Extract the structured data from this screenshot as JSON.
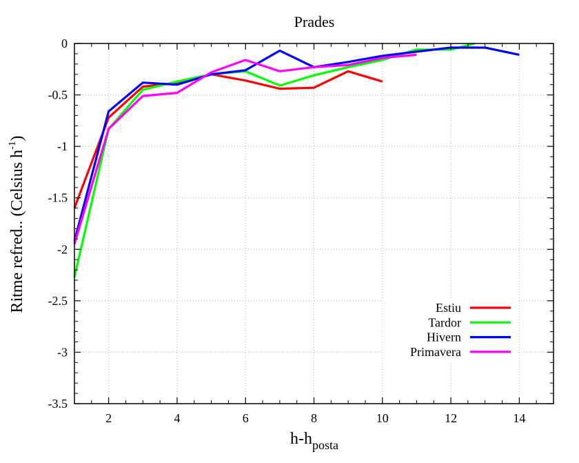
{
  "chart_data": {
    "type": "line",
    "title": "Prades",
    "xlabel_main": "h-h",
    "xlabel_sub": "posta",
    "ylabel_main": "Ritme refred.. (Celsius h",
    "ylabel_sup": "-1",
    "ylabel_close": ")",
    "xlim": [
      1,
      15
    ],
    "ylim": [
      -3.5,
      0
    ],
    "x_ticks": [
      2,
      4,
      6,
      8,
      10,
      12,
      14
    ],
    "x_tick_labels": [
      "2",
      "4",
      "6",
      "8",
      "10",
      "12",
      "14"
    ],
    "y_ticks": [
      0,
      -0.5,
      -1,
      -1.5,
      -2,
      -2.5,
      -3,
      -3.5
    ],
    "y_tick_labels": [
      "0",
      "-0.5",
      "-1",
      "-1.5",
      "-2",
      "-2.5",
      "-3",
      "-3.5"
    ],
    "grid": true,
    "legend_position": "bottom-right",
    "series": [
      {
        "name": "Estiu",
        "color": "#ff0000",
        "x": [
          1,
          2,
          3,
          4,
          5,
          6,
          7,
          8,
          9,
          10
        ],
        "y": [
          -1.6,
          -0.72,
          -0.42,
          -0.38,
          -0.3,
          -0.36,
          -0.44,
          -0.43,
          -0.27,
          -0.37
        ]
      },
      {
        "name": "Tardor",
        "color": "#00ff00",
        "x": [
          1,
          2,
          3,
          4,
          5,
          6,
          7,
          8,
          9,
          10,
          11,
          12,
          12.7
        ],
        "y": [
          -2.27,
          -0.83,
          -0.45,
          -0.37,
          -0.3,
          -0.27,
          -0.41,
          -0.31,
          -0.23,
          -0.16,
          -0.06,
          -0.06,
          0
        ]
      },
      {
        "name": "Hivern",
        "color": "#0000ff",
        "x": [
          1,
          2,
          3,
          4,
          5,
          6,
          7,
          8,
          9,
          10,
          11,
          12,
          13,
          14
        ],
        "y": [
          -1.92,
          -0.66,
          -0.38,
          -0.4,
          -0.3,
          -0.26,
          -0.07,
          -0.23,
          -0.18,
          -0.12,
          -0.08,
          -0.04,
          -0.04,
          -0.11
        ]
      },
      {
        "name": "Primavera",
        "color": "#ff00ff",
        "x": [
          1,
          2,
          3,
          4,
          5,
          6,
          7,
          8,
          9,
          10,
          11
        ],
        "y": [
          -1.95,
          -0.83,
          -0.51,
          -0.48,
          -0.28,
          -0.16,
          -0.27,
          -0.23,
          -0.21,
          -0.14,
          -0.11
        ]
      }
    ]
  }
}
